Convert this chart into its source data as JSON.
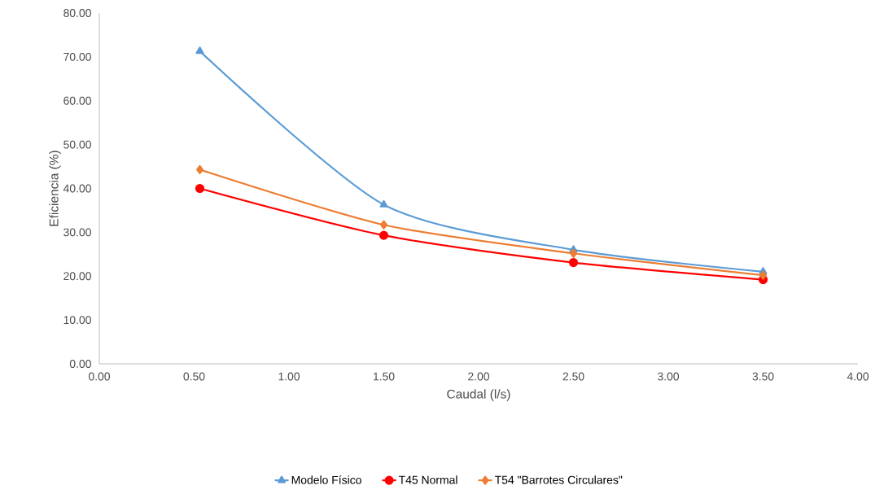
{
  "chart_data": {
    "type": "line",
    "xlabel": "Caudal (l/s)",
    "ylabel": "Eficiencia (%)",
    "xlim": [
      0,
      4
    ],
    "ylim": [
      0,
      80
    ],
    "xticks": [
      {
        "value": 0,
        "label": "0.00"
      },
      {
        "value": 0.5,
        "label": "0.50"
      },
      {
        "value": 1,
        "label": "1.00"
      },
      {
        "value": 1.5,
        "label": "1.50"
      },
      {
        "value": 2,
        "label": "2.00"
      },
      {
        "value": 2.5,
        "label": "2.50"
      },
      {
        "value": 3,
        "label": "3.00"
      },
      {
        "value": 3.5,
        "label": "3.50"
      },
      {
        "value": 4,
        "label": "4.00"
      }
    ],
    "yticks": [
      {
        "value": 0,
        "label": "0.00"
      },
      {
        "value": 10,
        "label": "10.00"
      },
      {
        "value": 20,
        "label": "20.00"
      },
      {
        "value": 30,
        "label": "30.00"
      },
      {
        "value": 40,
        "label": "40.00"
      },
      {
        "value": 50,
        "label": "50.00"
      },
      {
        "value": 60,
        "label": "60.00"
      },
      {
        "value": 70,
        "label": "70.00"
      },
      {
        "value": 80,
        "label": "80.00"
      }
    ],
    "x": [
      0.53,
      1.5,
      2.5,
      3.5
    ],
    "grid": false,
    "legend": "bottom",
    "line_style": "solid",
    "series": [
      {
        "name": "Modelo Físico",
        "color": "#5b9bd5",
        "marker": "triangle",
        "values": [
          71.3,
          36.3,
          26.0,
          21.0
        ]
      },
      {
        "name": "T45 Normal",
        "color": "#ff0000",
        "marker": "circle",
        "values": [
          40.0,
          29.3,
          23.1,
          19.2
        ]
      },
      {
        "name": "T54 \"Barrotes Circulares\"",
        "color": "#ed7d31",
        "marker": "diamond",
        "values": [
          44.3,
          31.7,
          25.2,
          20.2
        ]
      }
    ]
  }
}
